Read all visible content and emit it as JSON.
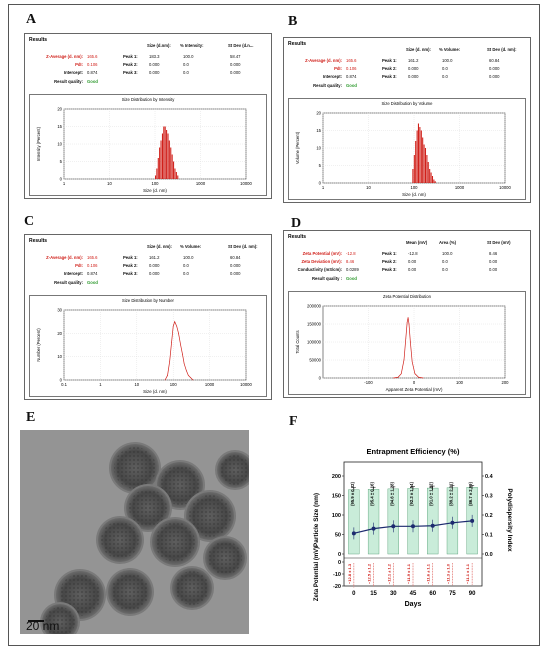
{
  "panels": {
    "A": {
      "letter": "A",
      "results": "Results",
      "h_size": "Size (d.nm):",
      "h_pct": "% Intensity:",
      "h_sd": "St Dev (d.n...",
      "rows": [
        [
          "Z-Average (d. nm):",
          "165.6",
          "Peak 1:",
          "183.3",
          "100.0",
          "58.47"
        ],
        [
          "PdI:",
          "0.106",
          "Peak 2:",
          "0.000",
          "0.0",
          "0.000"
        ],
        [
          "Intercept:",
          "0.874",
          "Peak 3:",
          "0.000",
          "0.0",
          "0.000"
        ]
      ],
      "quality_label": "Result quality:",
      "quality": "Good",
      "chart_title": "Size Distribution by Intensity",
      "xlabel": "Size (d. nm)",
      "ylabel": "Intensity (Percent)"
    },
    "B": {
      "letter": "B",
      "results": "Results",
      "h_size": "Size (d. nm):",
      "h_pct": "% Volume:",
      "h_sd": "St Dev (d. nm):",
      "rows": [
        [
          "Z-Average (d. nm):",
          "165.6",
          "Peak 1:",
          "161.2",
          "100.0",
          "60.84"
        ],
        [
          "PdI:",
          "0.106",
          "Peak 2:",
          "0.000",
          "0.0",
          "0.000"
        ],
        [
          "Intercept:",
          "0.874",
          "Peak 3:",
          "0.000",
          "0.0",
          "0.000"
        ]
      ],
      "quality_label": "Result quality:",
      "quality": "Good",
      "chart_title": "Size Distribution by Volume",
      "xlabel": "Size (d. nm)",
      "ylabel": "Volume (Percent)"
    },
    "C": {
      "letter": "C",
      "results": "Results",
      "h_size": "Size (d. nm):",
      "h_pct": "% Volume:",
      "h_sd": "St Dev (d. nm):",
      "rows": [
        [
          "Z-Average (d. nm):",
          "165.6",
          "Peak 1:",
          "161.2",
          "100.0",
          "60.84"
        ],
        [
          "PdI:",
          "0.106",
          "Peak 2:",
          "0.000",
          "0.0",
          "0.000"
        ],
        [
          "Intercept:",
          "0.874",
          "Peak 3:",
          "0.000",
          "0.0",
          "0.000"
        ]
      ],
      "quality_label": "Result quality:",
      "quality": "Good",
      "chart_title": "Size Distribution by Number",
      "xlabel": "Size (d. nm)",
      "ylabel": "Number (Percent)"
    },
    "D": {
      "letter": "D",
      "results": "Results",
      "h_size": "Mean (mV)",
      "h_pct": "Area (%)",
      "h_sd": "St Dev (mV)",
      "rows": [
        [
          "Zeta Potential (mV):",
          "-12.8",
          "Peak 1:",
          "-12.8",
          "100.0",
          "8.46"
        ],
        [
          "Zeta Deviation (mV):",
          "8.46",
          "Peak 2:",
          "0.00",
          "0.0",
          "0.00"
        ],
        [
          "Conductivity (mS/cm):",
          "0.0289",
          "Peak 3:",
          "0.00",
          "0.0",
          "0.00"
        ]
      ],
      "quality_label": "Result quality :",
      "quality": "Good",
      "chart_title": "Zeta Potential Distribution",
      "xlabel": "Apparent Zeta Potential (mV)",
      "ylabel": "Total Counts"
    },
    "E": {
      "letter": "E",
      "scale": "20 nm"
    },
    "F": {
      "letter": "F",
      "title": "Entrapment Efficiency (%)",
      "ylabel_left": "Particle Size (nm)",
      "ylabel_left2": "Zeta Potential (mV)",
      "ylabel_right": "Polydispersity Index",
      "xlabel": "Days"
    }
  },
  "chart_data": [
    {
      "id": "A",
      "type": "bar",
      "xscale": "log",
      "x_ticks": [
        "1",
        "10",
        "100",
        "1000",
        "10000"
      ],
      "y_ticks": [
        "0",
        "5",
        "10",
        "15",
        "20"
      ],
      "ylim": [
        0,
        20
      ],
      "x": [
        100,
        107,
        115,
        123,
        132,
        142,
        152,
        163,
        175,
        188,
        201,
        216,
        232,
        249,
        267,
        287,
        308
      ],
      "values": [
        1,
        3,
        6,
        9,
        11,
        13,
        15,
        15,
        14,
        13,
        11,
        9,
        7,
        5,
        3,
        2,
        1
      ],
      "color": "#d0201a"
    },
    {
      "id": "B",
      "type": "bar",
      "xscale": "log",
      "x_ticks": [
        "1",
        "10",
        "100",
        "1000",
        "10000"
      ],
      "y_ticks": [
        "0",
        "5",
        "10",
        "15",
        "20"
      ],
      "ylim": [
        0,
        20
      ],
      "x": [
        92,
        99,
        106,
        114,
        122,
        131,
        141,
        151,
        162,
        174,
        187,
        200,
        215,
        231,
        248,
        266,
        285
      ],
      "values": [
        4,
        8,
        12,
        15,
        17,
        16,
        15,
        13,
        11,
        10,
        8,
        6,
        4,
        3,
        2,
        1,
        0.5
      ],
      "color": "#d0201a"
    },
    {
      "id": "C",
      "type": "line",
      "xscale": "log",
      "x_ticks": [
        "0.1",
        "1",
        "10",
        "100",
        "1000",
        "10000"
      ],
      "y_ticks": [
        "0",
        "10",
        "20",
        "30"
      ],
      "ylim": [
        0,
        30
      ],
      "x": [
        60,
        70,
        80,
        90,
        100,
        110,
        125,
        140,
        160,
        180,
        200,
        230,
        260,
        300,
        350
      ],
      "values": [
        0,
        2,
        8,
        16,
        23,
        25,
        23,
        20,
        15,
        11,
        7,
        4,
        2,
        1,
        0
      ],
      "color": "#d0201a"
    },
    {
      "id": "D",
      "type": "line",
      "x_ticks": [
        "-100",
        "0",
        "100",
        "200"
      ],
      "y_ticks": [
        "0",
        "50000",
        "100000",
        "150000",
        "200000"
      ],
      "xlim": [
        -200,
        200
      ],
      "ylim": [
        0,
        200000
      ],
      "x": [
        -45,
        -35,
        -28,
        -22,
        -18,
        -15,
        -13,
        -11,
        -8,
        -4,
        2,
        10,
        20
      ],
      "values": [
        0,
        2000,
        12000,
        50000,
        110000,
        155000,
        168000,
        150000,
        100000,
        45000,
        12000,
        2000,
        0
      ],
      "color": "#d0201a"
    },
    {
      "id": "F",
      "type": "bar",
      "categories": [
        "0",
        "15",
        "30",
        "45",
        "60",
        "75",
        "90"
      ],
      "particle_size": [
        165,
        166,
        167,
        168,
        169,
        170,
        171
      ],
      "ylim_size": [
        0,
        200
      ],
      "size_ticks": [
        "0",
        "50",
        "100",
        "150",
        "200"
      ],
      "zeta": [
        -12.8,
        -12.5,
        -12.1,
        -11.9,
        -11.6,
        -11.3,
        -11.1
      ],
      "ylim_zeta": [
        -20,
        0
      ],
      "zeta_ticks": [
        "-20",
        "-10",
        "0"
      ],
      "pdi": [
        0.106,
        0.13,
        0.142,
        0.142,
        0.145,
        0.16,
        0.17
      ],
      "ylim_pdi": [
        0,
        0.4
      ],
      "pdi_ticks": [
        "0.0",
        "0.1",
        "0.2",
        "0.3",
        "0.4"
      ],
      "entrapment": [
        "(95.9 ± 0.32)",
        "(95.4 ± 0.16)",
        "(94.6 ± 1.28)",
        "(92.3 ± 1.54)",
        "(91.0 ± 1.82)",
        "(89.2 ± 2.01)",
        "(86.7 ± 2.99)"
      ],
      "zeta_labels": [
        "−12.8 ± 1.3",
        "−12.5 ± 1.2",
        "−12.1 ± 1.2",
        "−11.9 ± 1.1",
        "−11.6 ± 1.1",
        "−11.3 ± 1.0",
        "−11.1 ± 1.1"
      ],
      "bar_color": "#c9ecd9",
      "line_color": "#1c2a6e"
    }
  ]
}
